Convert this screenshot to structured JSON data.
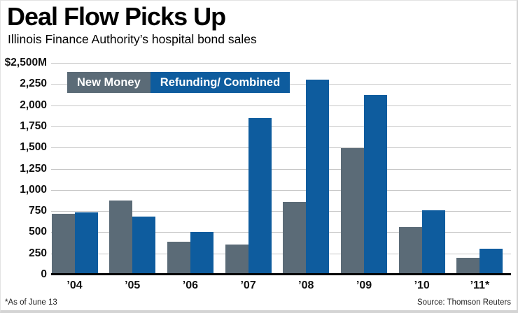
{
  "header": {
    "title": "Deal Flow Picks Up",
    "subtitle": "Illinois Finance Authority’s hospital bond sales"
  },
  "footer": {
    "note": "*As of June 13",
    "source": "Source: Thomson Reuters"
  },
  "colors": {
    "new_money": "#5b6b77",
    "refunding": "#0e5c9e",
    "gridline": "#c6c6c6",
    "axis": "#000000"
  },
  "chart_data": {
    "type": "bar",
    "title": "Deal Flow Picks Up",
    "subtitle": "Illinois Finance Authority’s hospital bond sales",
    "unit": "$M",
    "categories": [
      "’04",
      "’05",
      "’06",
      "’07",
      "’08",
      "’09",
      "’10",
      "’11*"
    ],
    "series": [
      {
        "name": "New Money",
        "color": "#5b6b77",
        "values": [
          700,
          855,
          375,
          335,
          840,
          1480,
          545,
          180
        ]
      },
      {
        "name": "Refunding/ Combined",
        "color": "#0e5c9e",
        "values": [
          720,
          665,
          490,
          1835,
          2285,
          2105,
          740,
          290
        ]
      }
    ],
    "y_ticks": [
      "$2,500M",
      "2,250",
      "2,000",
      "1,750",
      "1,500",
      "1,250",
      "1,000",
      "750",
      "500",
      "250",
      "0"
    ],
    "ylim": [
      0,
      2500
    ],
    "grid": true,
    "legend_position": "top-inside",
    "footnote": "*As of June 13",
    "source": "Source: Thomson Reuters"
  }
}
